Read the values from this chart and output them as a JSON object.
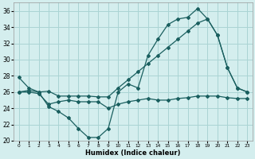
{
  "xlabel": "Humidex (Indice chaleur)",
  "xlim": [
    -0.5,
    23.5
  ],
  "ylim": [
    20,
    37
  ],
  "yticks": [
    20,
    22,
    24,
    26,
    28,
    30,
    32,
    34,
    36
  ],
  "xticks": [
    0,
    1,
    2,
    3,
    4,
    5,
    6,
    7,
    8,
    9,
    10,
    11,
    12,
    13,
    14,
    15,
    16,
    17,
    18,
    19,
    20,
    21,
    22,
    23
  ],
  "bg_color": "#d4eeee",
  "grid_color": "#aad4d4",
  "line_color": "#1a5f5f",
  "curve1_x": [
    0,
    1,
    2,
    3,
    4,
    5,
    6,
    7,
    8,
    9,
    10,
    11,
    12,
    13,
    14,
    15,
    16,
    17,
    18,
    19,
    20,
    21,
    22,
    23
  ],
  "curve1_y": [
    27.8,
    26.5,
    26.0,
    24.2,
    23.6,
    22.8,
    21.5,
    20.4,
    20.4,
    21.5,
    26.0,
    27.0,
    26.5,
    30.5,
    32.5,
    34.3,
    35.0,
    35.2,
    36.3,
    35.0,
    33.0,
    29.0,
    26.5,
    26.0
  ],
  "curve2_x": [
    0,
    1,
    2,
    3,
    4,
    5,
    6,
    7,
    8,
    9,
    10,
    11,
    12,
    13,
    14,
    15,
    16,
    17,
    18,
    19,
    20,
    21,
    22,
    23
  ],
  "curve2_y": [
    26.0,
    26.2,
    26.0,
    26.1,
    25.5,
    25.5,
    25.5,
    25.5,
    25.4,
    25.4,
    26.5,
    27.5,
    28.5,
    29.5,
    30.5,
    31.5,
    32.5,
    33.5,
    34.5,
    35.0,
    33.0,
    29.0,
    26.5,
    26.0
  ],
  "curve3_x": [
    0,
    1,
    2,
    3,
    4,
    5,
    6,
    7,
    8,
    9,
    10,
    11,
    12,
    13,
    14,
    15,
    16,
    17,
    18,
    19,
    20,
    21,
    22,
    23
  ],
  "curve3_y": [
    26.0,
    26.0,
    25.8,
    24.5,
    24.8,
    25.0,
    24.8,
    24.8,
    24.8,
    24.0,
    24.5,
    24.8,
    25.0,
    25.2,
    25.0,
    25.0,
    25.2,
    25.3,
    25.5,
    25.5,
    25.5,
    25.3,
    25.2,
    25.2
  ]
}
